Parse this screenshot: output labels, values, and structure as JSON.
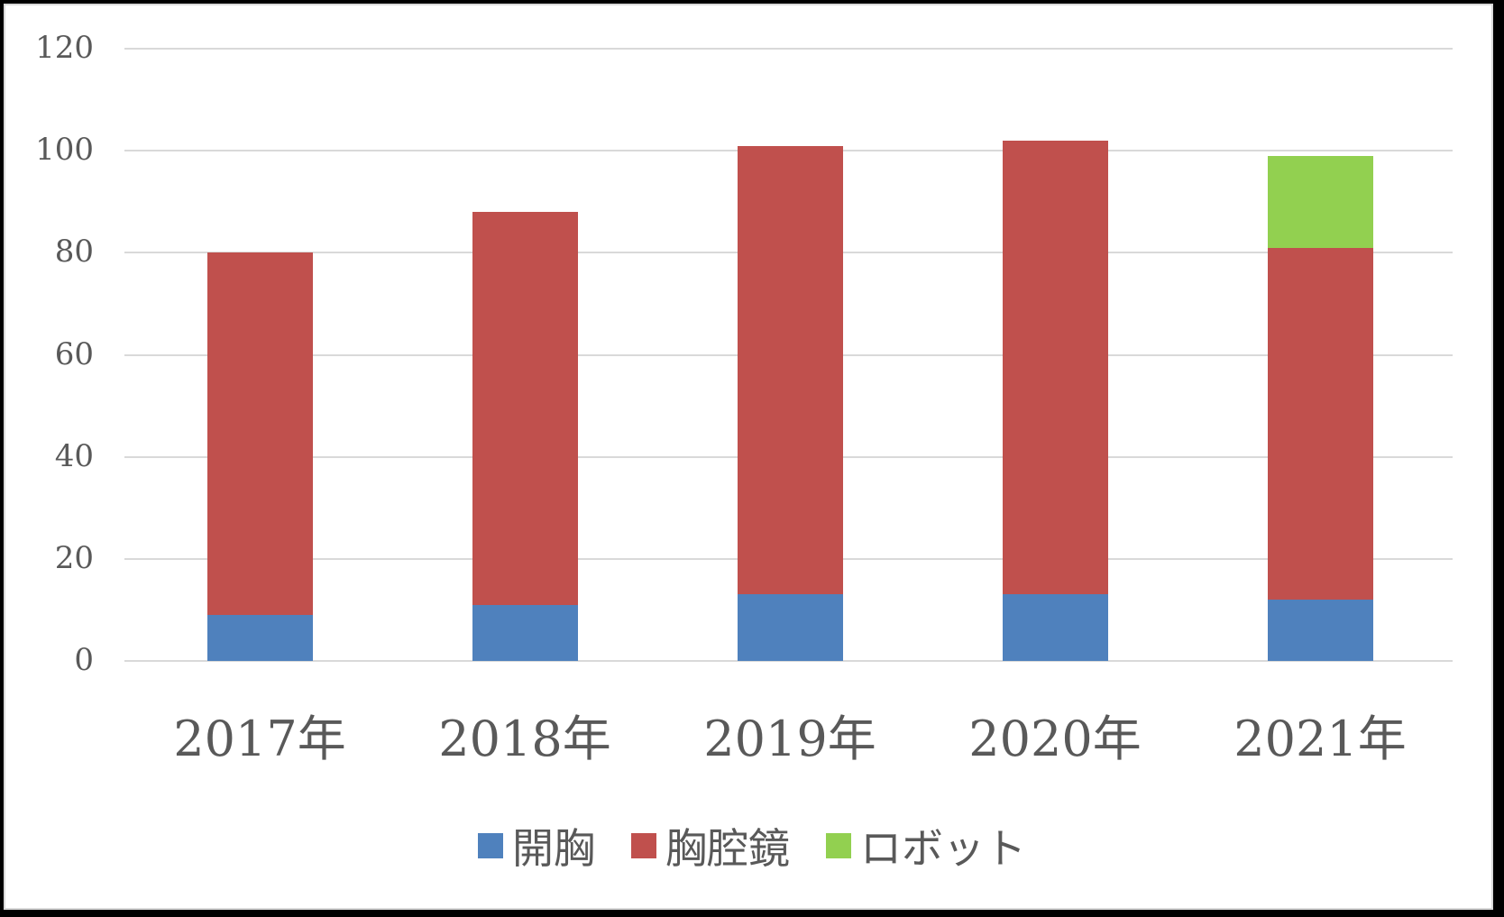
{
  "chart_data": {
    "type": "bar",
    "stacked": true,
    "title": "",
    "xlabel": "",
    "ylabel": "",
    "categories": [
      "2017年",
      "2018年",
      "2019年",
      "2020年",
      "2021年"
    ],
    "series": [
      {
        "name": "開胸",
        "color": "#4f81bd",
        "values": [
          9,
          11,
          13,
          13,
          12
        ]
      },
      {
        "name": "胸腔鏡",
        "color": "#c0504d",
        "values": [
          71,
          77,
          88,
          89,
          69
        ]
      },
      {
        "name": "ロボット",
        "color": "#92d050",
        "values": [
          0,
          0,
          0,
          0,
          18
        ]
      }
    ],
    "totals": [
      80,
      88,
      101,
      102,
      99
    ],
    "ylim": [
      0,
      120
    ],
    "yticks": [
      0,
      20,
      40,
      60,
      80,
      100,
      120
    ],
    "grid": true,
    "legend_position": "bottom"
  },
  "yaxis": {
    "ticks": [
      "0",
      "20",
      "40",
      "60",
      "80",
      "100",
      "120"
    ]
  },
  "xaxis": {
    "labels": [
      "2017年",
      "2018年",
      "2019年",
      "2020年",
      "2021年"
    ]
  },
  "legend": {
    "items": [
      "開胸",
      "胸腔鏡",
      "ロボット"
    ]
  }
}
